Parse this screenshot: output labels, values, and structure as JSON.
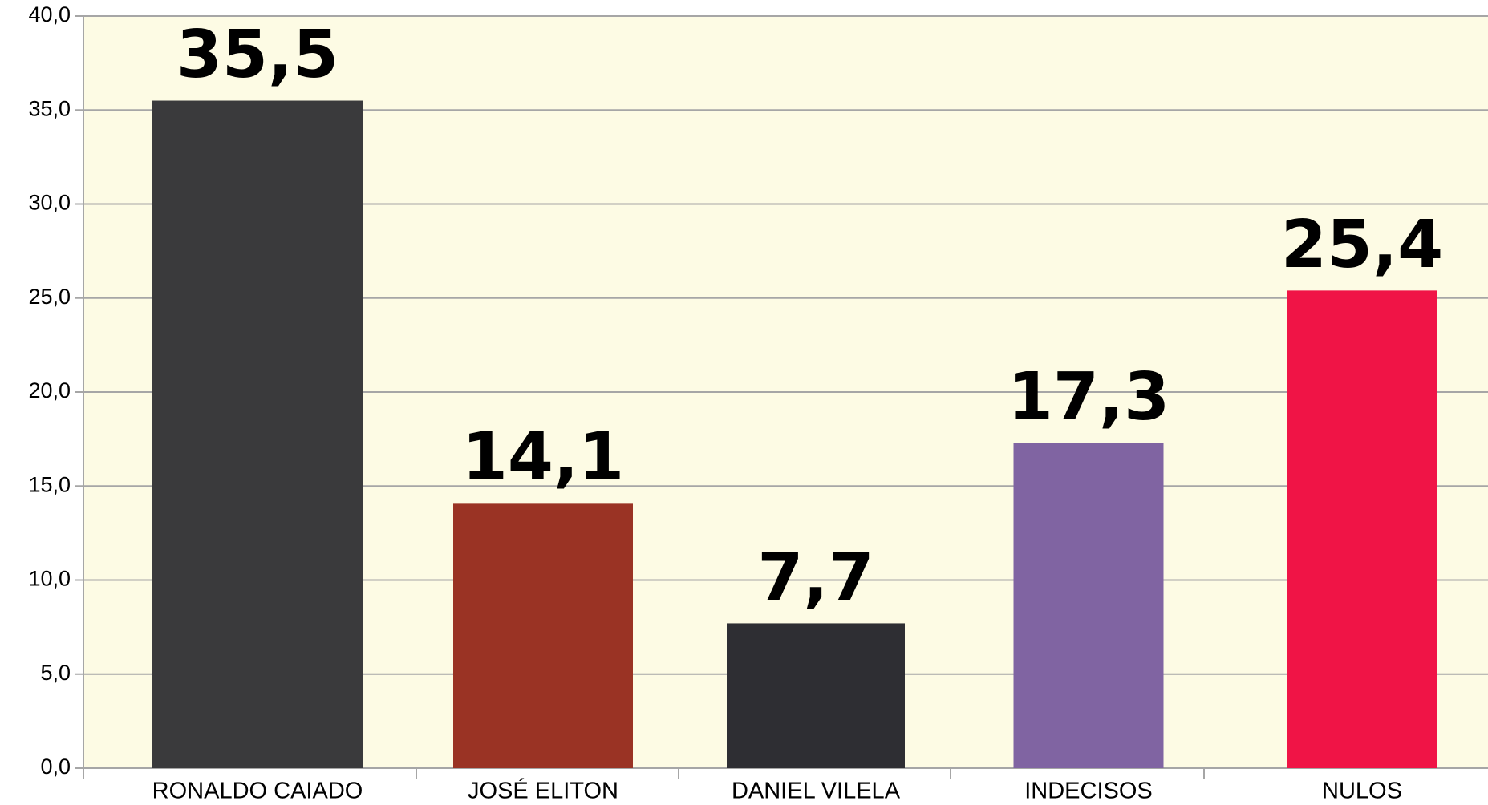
{
  "chart_data": {
    "type": "bar",
    "categories": [
      "RONALDO CAIADO",
      "JOSÉ ELITON",
      "DANIEL VILELA",
      "INDECISOS",
      "NULOS"
    ],
    "values": [
      35.5,
      14.1,
      7.7,
      17.3,
      25.4
    ],
    "value_labels": [
      "35,5",
      "14,1",
      "7,7",
      "17,3",
      "25,4"
    ],
    "colors": [
      "#3a3a3c",
      "#9a3324",
      "#2e2e33",
      "#8064a2",
      "#f01446"
    ],
    "ylim": [
      0,
      40
    ],
    "yticks": [
      {
        "value": 0,
        "label": "0,0"
      },
      {
        "value": 5,
        "label": "5,0"
      },
      {
        "value": 10,
        "label": "10,0"
      },
      {
        "value": 15,
        "label": "15,0"
      },
      {
        "value": 20,
        "label": "20,0"
      },
      {
        "value": 25,
        "label": "25,0"
      },
      {
        "value": 30,
        "label": "30,0"
      },
      {
        "value": 35,
        "label": "35,0"
      },
      {
        "value": 40,
        "label": "40,0"
      }
    ],
    "grid": true
  }
}
